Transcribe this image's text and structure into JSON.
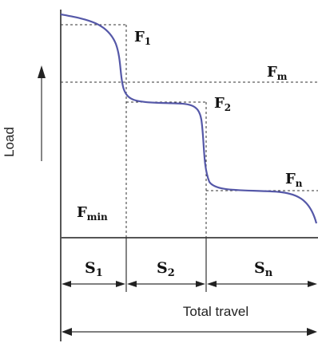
{
  "colors": {
    "curve": "#5558a8",
    "axis": "#555555",
    "text": "#111111"
  },
  "labels": {
    "y_axis": "Load",
    "x_axis": "Total travel"
  },
  "forces": [
    {
      "main": "F",
      "sub": "1"
    },
    {
      "main": "F",
      "sub": "m"
    },
    {
      "main": "F",
      "sub": "2"
    },
    {
      "main": "F",
      "sub": "n"
    },
    {
      "main": "F",
      "sub": "min"
    }
  ],
  "segments": [
    {
      "main": "S",
      "sub": "1"
    },
    {
      "main": "S",
      "sub": "2"
    },
    {
      "main": "S",
      "sub": "n"
    }
  ]
}
